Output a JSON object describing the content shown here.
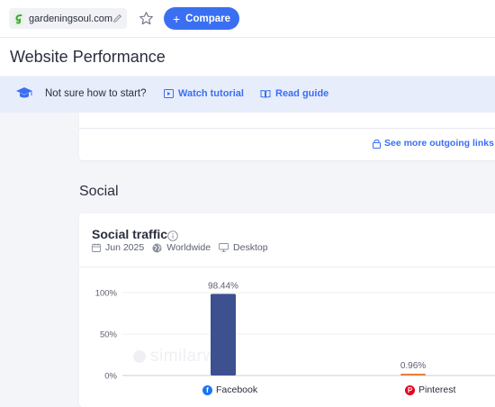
{
  "header": {
    "domain": "gardeningsoul.com",
    "compare_label": "Compare"
  },
  "page": {
    "title": "Website Performance"
  },
  "help": {
    "prompt": "Not sure how to start?",
    "watch_tutorial": "Watch tutorial",
    "read_guide": "Read guide"
  },
  "outgoing": {
    "link_label": "See more outgoing links"
  },
  "social": {
    "section_title": "Social",
    "card_title": "Social traffic",
    "date": "Jun 2025",
    "region": "Worldwide",
    "device": "Desktop",
    "watermark": "similarweb"
  },
  "colors": {
    "accent": "#3a6ff2",
    "facebook_bar": "#3d5190",
    "pinterest_bar": "#e8813a"
  },
  "chart_data": {
    "type": "bar",
    "categories": [
      "Facebook",
      "Pinterest"
    ],
    "values": [
      98.44,
      0.96
    ],
    "value_labels": [
      "98.44%",
      "0.96%"
    ],
    "yticks": [
      "0%",
      "50%",
      "100%"
    ],
    "ylim": [
      0,
      100
    ],
    "icons": [
      "facebook-icon",
      "pinterest-icon"
    ]
  }
}
